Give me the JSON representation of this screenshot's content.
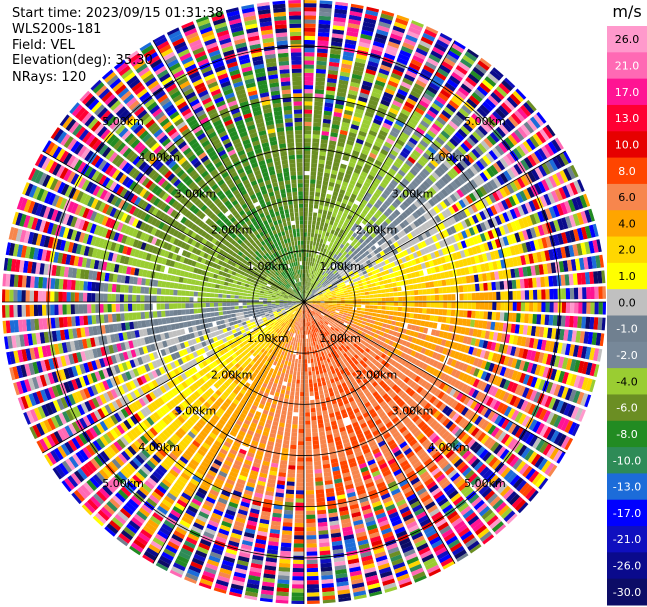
{
  "header": {
    "start_time": "Start time: 2023/09/15 01:31:38",
    "instrument": "WLS200s-181",
    "field": "Field: VEL",
    "elevation": "Elevation(deg): 35.30",
    "nrays": "NRays: 120"
  },
  "chart_data": {
    "type": "heatmap",
    "projection": "polar",
    "title": "",
    "field": "VEL",
    "units": "m/s",
    "n_rays": 120,
    "range_max_km": 5.9,
    "range_rings_km": [
      1,
      2,
      3,
      4,
      5
    ],
    "ring_labels": [
      "1.00km",
      "2.00km",
      "3.00km",
      "4.00km",
      "5.00km"
    ],
    "spoke_azimuths_deg": [
      0,
      30,
      60,
      90,
      120,
      150,
      180,
      210,
      240,
      270,
      300,
      330
    ],
    "colorbar": {
      "title": "m/s",
      "bounds": [
        -30,
        -26,
        -21,
        -17,
        -13,
        -10,
        -8,
        -6,
        -4,
        -2,
        -1,
        0,
        1,
        2,
        4,
        6,
        8,
        10,
        13,
        17,
        21,
        26,
        30
      ],
      "tick_labels": [
        "26.0",
        "21.0",
        "17.0",
        "13.0",
        "10.0",
        "8.0",
        "6.0",
        "4.0",
        "2.0",
        "1.0",
        "0.0",
        "-1.0",
        "-2.0",
        "-4.0",
        "-6.0",
        "-8.0",
        "-10.0",
        "-13.0",
        "-17.0",
        "-21.0",
        "-26.0",
        "-30.0"
      ],
      "colors": [
        "#0c0c66",
        "#0a0a8c",
        "#0f0fbf",
        "#0000ff",
        "#1c6cd9",
        "#2e8b57",
        "#228b22",
        "#6b8e23",
        "#9acd32",
        "#778899",
        "#708090",
        "#c0c0c0",
        "#ffff00",
        "#ffd700",
        "#ffa500",
        "#f7864d",
        "#ff4500",
        "#e60000",
        "#ff0033",
        "#ff1493",
        "#ff69b4",
        "#ff99cc"
      ]
    },
    "velocity_pattern": {
      "min_velocity": -6,
      "max_velocity": 8,
      "approach_azimuth_deg": 320,
      "recede_azimuth_deg": 155,
      "clean_range_km": 3.1,
      "noise_range_km": 4.9
    }
  }
}
